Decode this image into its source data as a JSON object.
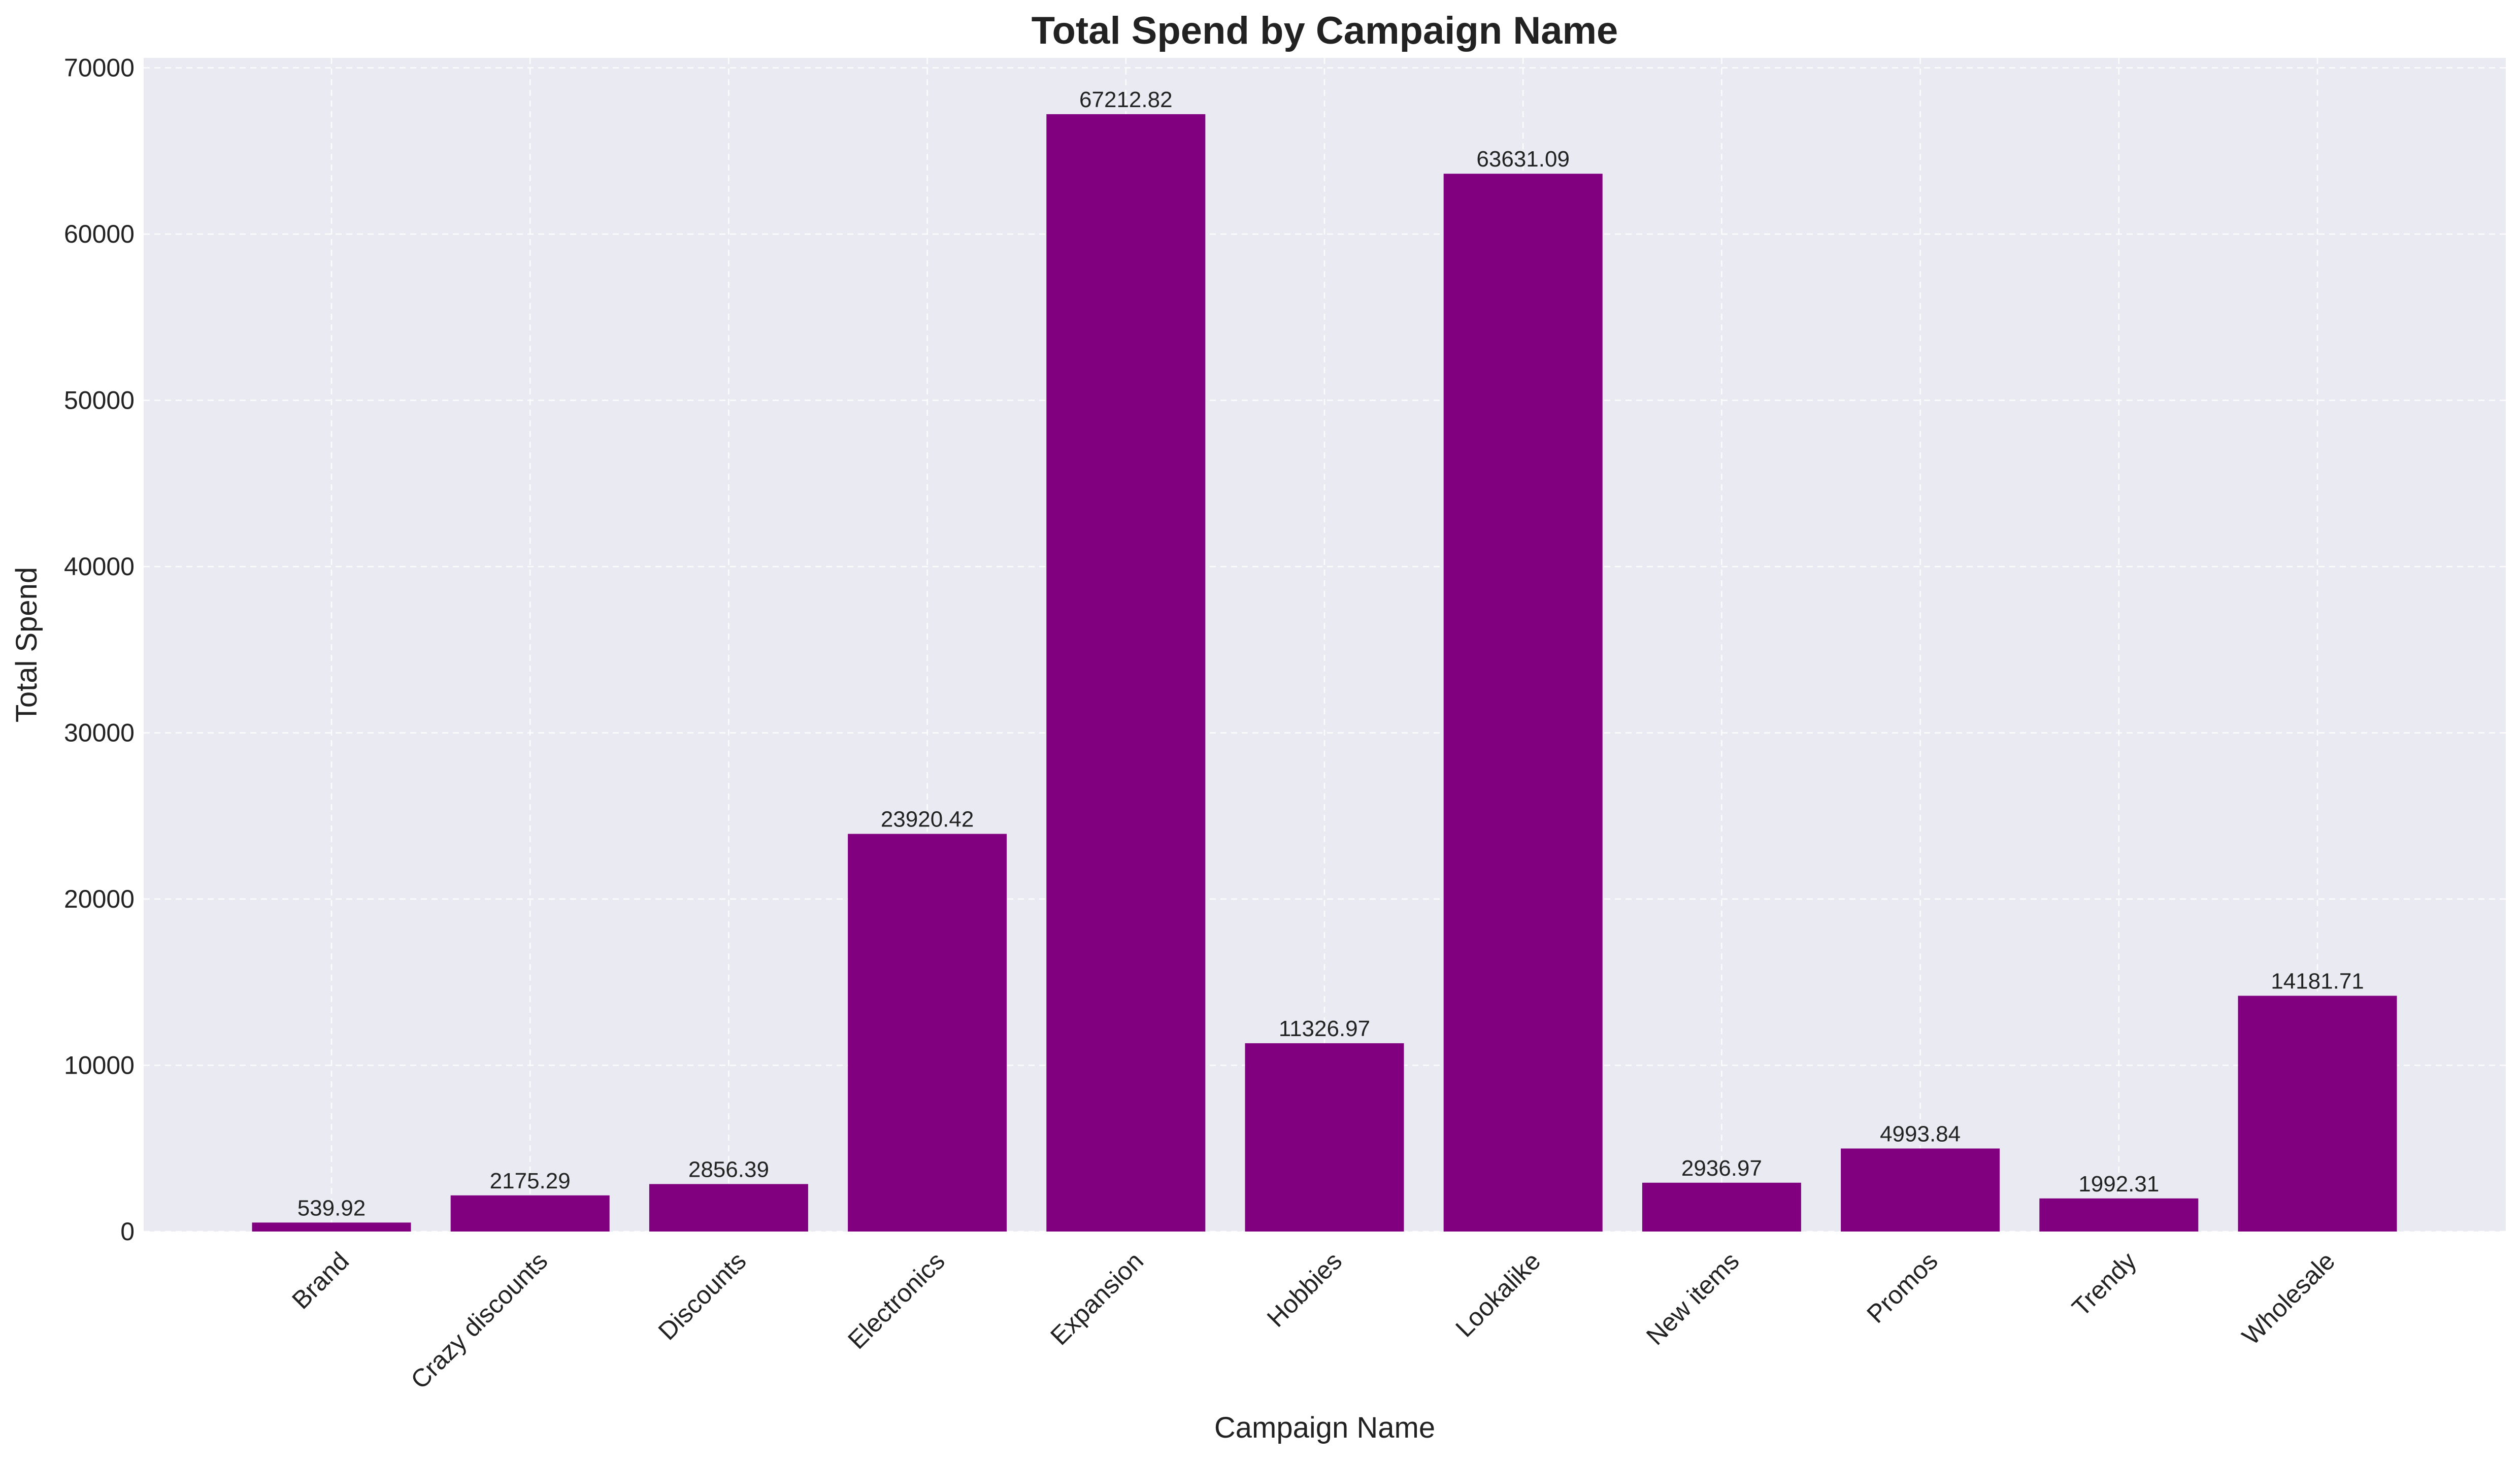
{
  "chart_data": {
    "type": "bar",
    "title": "Total Spend by Campaign Name",
    "xlabel": "Campaign Name",
    "ylabel": "Total Spend",
    "categories": [
      "Brand",
      "Crazy discounts",
      "Discounts",
      "Electronics",
      "Expansion",
      "Hobbies",
      "Lookalike",
      "New items",
      "Promos",
      "Trendy",
      "Wholesale"
    ],
    "values": [
      539.92,
      2175.29,
      2856.39,
      23920.42,
      67212.82,
      11326.97,
      63631.09,
      2936.97,
      4993.84,
      1992.31,
      14181.71
    ],
    "value_labels": [
      "539.92",
      "2175.29",
      "2856.39",
      "23920.42",
      "67212.82",
      "11326.97",
      "63631.09",
      "2936.97",
      "4993.84",
      "1992.31",
      "14181.71"
    ],
    "yticks": [
      0,
      10000,
      20000,
      30000,
      40000,
      50000,
      60000,
      70000
    ],
    "ylim": [
      0,
      70600
    ],
    "grid": true,
    "legend": "none",
    "colors": {
      "bar": "#800080",
      "plot_background": "#eaeaf2",
      "grid": "#ffffff",
      "text": "#222222"
    }
  }
}
